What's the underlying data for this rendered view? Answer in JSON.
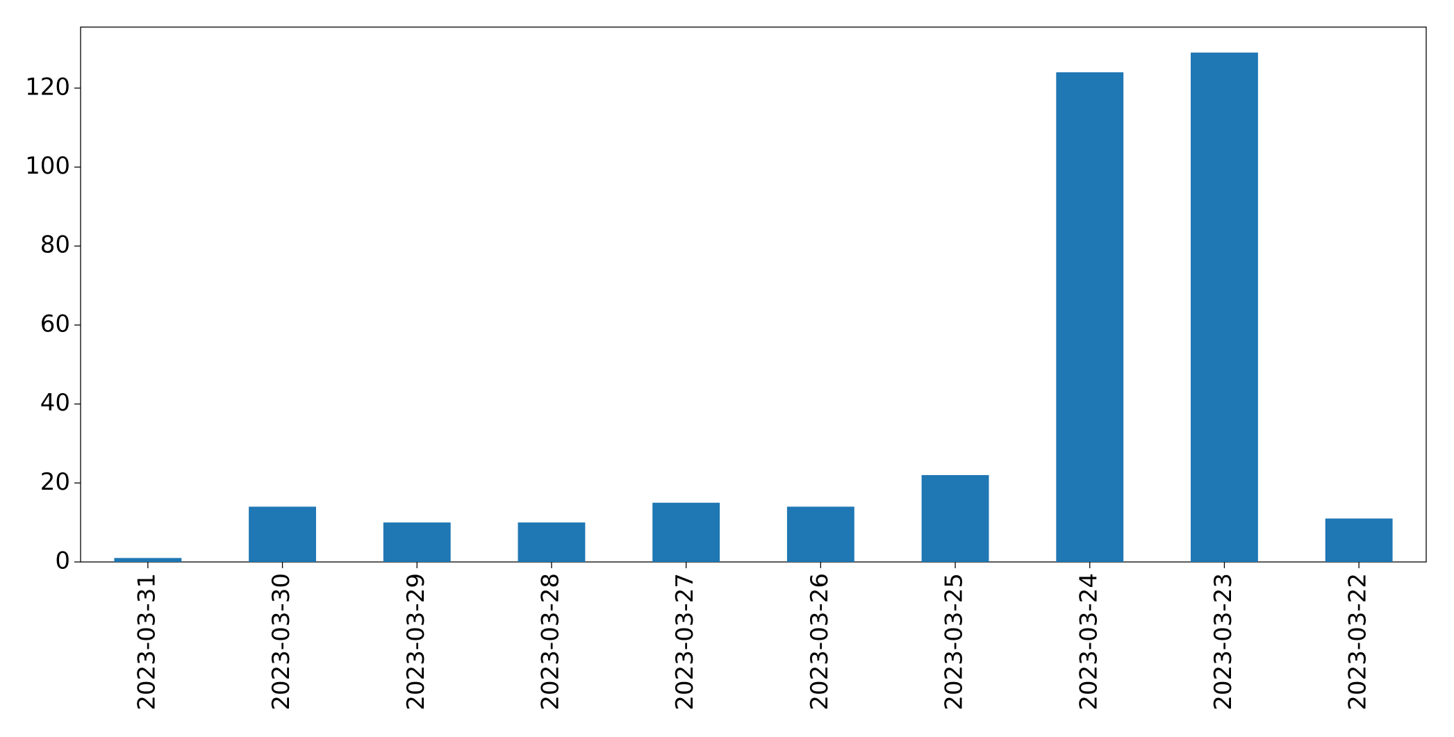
{
  "chart_data": {
    "type": "bar",
    "categories": [
      "2023-03-31",
      "2023-03-30",
      "2023-03-29",
      "2023-03-28",
      "2023-03-27",
      "2023-03-26",
      "2023-03-25",
      "2023-03-24",
      "2023-03-23",
      "2023-03-22"
    ],
    "values": [
      1,
      14,
      10,
      10,
      15,
      14,
      22,
      124,
      129,
      11
    ],
    "color": "#1f77b4",
    "ylim": [
      0,
      135.45
    ],
    "yticks": [
      0,
      20,
      40,
      60,
      80,
      100,
      120
    ],
    "grid": false
  }
}
